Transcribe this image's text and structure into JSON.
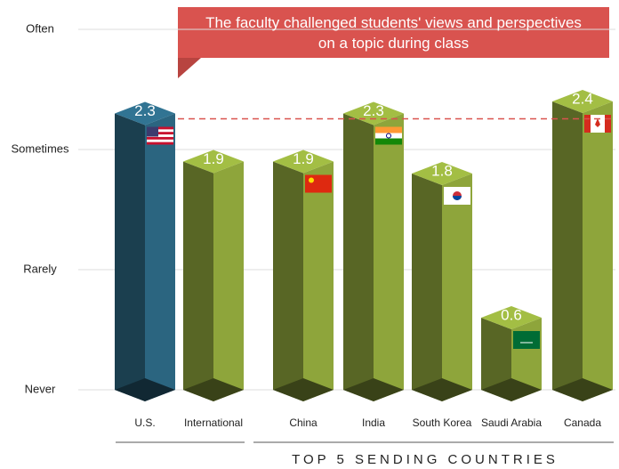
{
  "chart_data": {
    "type": "bar3d",
    "title": "The faculty challenged students' views and perspectives on a topic during class",
    "categories": [
      "U.S.",
      "International",
      "China",
      "India",
      "South Korea",
      "Saudi Arabia",
      "Canada"
    ],
    "values": [
      2.3,
      1.9,
      1.9,
      2.3,
      1.8,
      0.6,
      2.4
    ],
    "colors": [
      "#2b6580",
      "#8ea53b",
      "#8ea53b",
      "#8ea53b",
      "#8ea53b",
      "#8ea53b",
      "#8ea53b"
    ],
    "ylim": [
      0,
      3
    ],
    "yticks": [
      {
        "value": 0,
        "label": "Never"
      },
      {
        "value": 1,
        "label": "Rarely"
      },
      {
        "value": 2,
        "label": "Sometimes"
      },
      {
        "value": 3,
        "label": "Often"
      }
    ],
    "grid": true,
    "group_label": "TOP 5 SENDING COUNTRIES"
  }
}
